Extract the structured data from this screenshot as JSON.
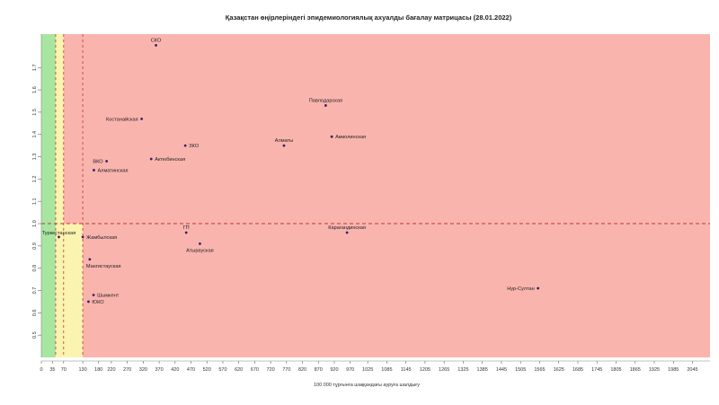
{
  "chart_data": {
    "type": "scatter",
    "title": "Қазақстан өңірлеріндегі эпидемиологиялық ахуалды бағалау матрицасы (28.01.2022)",
    "xlabel": "100 000 тұрғынға шаққандағы ауруға шалдығу",
    "ylabel": "",
    "xlim": [
      0,
      2100
    ],
    "ylim": [
      0.4,
      1.85
    ],
    "grid": false,
    "x_ticks": [
      0,
      35,
      70,
      130,
      180,
      220,
      270,
      320,
      370,
      420,
      470,
      520,
      570,
      620,
      670,
      720,
      770,
      820,
      870,
      920,
      970,
      1025,
      1085,
      1145,
      1205,
      1265,
      1325,
      1385,
      1445,
      1505,
      1565,
      1625,
      1685,
      1745,
      1805,
      1865,
      1925,
      1985,
      2045
    ],
    "x_tick_labels": [
      "0",
      "35",
      "70",
      "130",
      "180",
      "220",
      "270",
      "320",
      "370",
      "420",
      "470",
      "520",
      "570",
      "620",
      "670",
      "720",
      "770",
      "820",
      "870",
      "920",
      "970",
      "1025",
      "1085",
      "1145",
      "1205",
      "1265",
      "1325",
      "1385",
      "1445",
      "1505",
      "1565",
      "1625",
      "1685",
      "1745",
      "1805",
      "1865",
      "1925",
      "1985",
      "2045"
    ],
    "y_ticks": [
      0.5,
      0.6,
      0.7,
      0.8,
      0.9,
      1.0,
      1.1,
      1.2,
      1.3,
      1.4,
      1.5,
      1.6,
      1.7
    ],
    "y_tick_labels": [
      "0.5",
      "0.6",
      "0.7",
      "0.8",
      "0.9",
      "1.0",
      "1.1",
      "1.2",
      "1.3",
      "1.4",
      "1.5",
      "1.6",
      "1.7"
    ],
    "zones": [
      {
        "from": 0,
        "to": 45,
        "color": "#a8e6a0"
      },
      {
        "from": 45,
        "to": 70,
        "color": "#fbf3b0"
      },
      {
        "from": 70,
        "to": 2100,
        "color": "#fab4ae"
      }
    ],
    "lower_band": {
      "y_to": 1.0,
      "x_from": 45,
      "x_to": 130,
      "color": "#fbf3b0"
    },
    "reference_lines": {
      "h": 1.0,
      "v": [
        45,
        70,
        130
      ],
      "color": "#c0392b"
    },
    "points": [
      {
        "label": "СКО",
        "x": 360,
        "y": 1.8
      },
      {
        "label": "Павлодарская",
        "x": 893,
        "y": 1.53
      },
      {
        "label": "Костанайская",
        "x": 315,
        "y": 1.47
      },
      {
        "label": "Акмолинская",
        "x": 912,
        "y": 1.39
      },
      {
        "label": "ЗКО",
        "x": 452,
        "y": 1.35
      },
      {
        "label": "Алматы",
        "x": 762,
        "y": 1.35
      },
      {
        "label": "Актюбинская",
        "x": 345,
        "y": 1.29
      },
      {
        "label": "ВКО",
        "x": 205,
        "y": 1.28
      },
      {
        "label": "Алматинская",
        "x": 165,
        "y": 1.24
      },
      {
        "label": "ГП",
        "x": 455,
        "y": 0.96
      },
      {
        "label": "Карагандинская",
        "x": 960,
        "y": 0.96
      },
      {
        "label": "Туркестанская",
        "x": 55,
        "y": 0.94
      },
      {
        "label": "Жамбылская",
        "x": 130,
        "y": 0.94
      },
      {
        "label": "Атырауская",
        "x": 498,
        "y": 0.91
      },
      {
        "label": "Мангистауская",
        "x": 152,
        "y": 0.84
      },
      {
        "label": "Шымкент",
        "x": 164,
        "y": 0.68
      },
      {
        "label": "ЮКО",
        "x": 148,
        "y": 0.65
      },
      {
        "label": "Нур-Султан",
        "x": 1560,
        "y": 0.71
      }
    ]
  }
}
